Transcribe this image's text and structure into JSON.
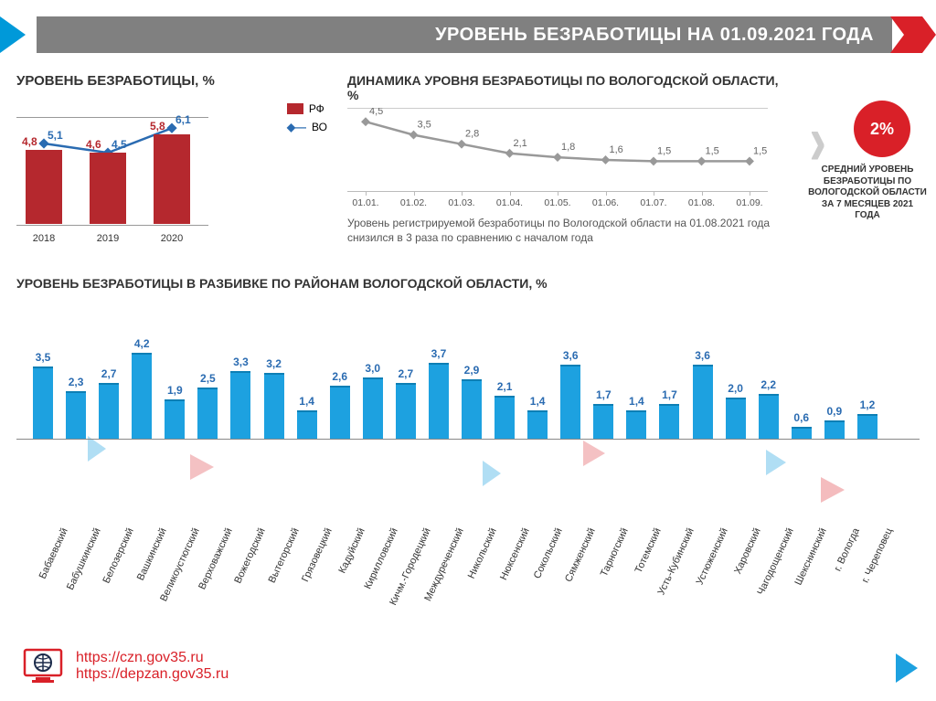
{
  "header": {
    "title": "УРОВЕНЬ БЕЗРАБОТИЦЫ НА 01.09.2021 ГОДА"
  },
  "colors": {
    "rf_bar": "#b5282e",
    "vo_line": "#2a6bb1",
    "district_bar": "#1da1e0",
    "badge": "#d92028",
    "grey_line": "#999999"
  },
  "bl_chart": {
    "title": "УРОВЕНЬ БЕЗРАБОТИЦЫ, %",
    "type": "bar+line",
    "categories": [
      "2018",
      "2019",
      "2020"
    ],
    "rf_values": [
      4.8,
      4.6,
      5.8
    ],
    "vo_values": [
      5.1,
      4.5,
      6.1
    ],
    "rf_labels": [
      "4,8",
      "4,6",
      "5,8"
    ],
    "vo_labels": [
      "5,1",
      "4,5",
      "6,1"
    ],
    "ylim": [
      0,
      7
    ],
    "bar_color": "#b5282e",
    "line_color": "#2a6bb1",
    "marker": "diamond",
    "legend_rf": "РФ",
    "legend_vo": "ВО"
  },
  "dyn_chart": {
    "title": "ДИНАМИКА УРОВНЯ БЕЗРАБОТИЦЫ ПО ВОЛОГОДСКОЙ ОБЛАСТИ, %",
    "type": "line",
    "x": [
      "01.01.",
      "01.02.",
      "01.03.",
      "01.04.",
      "01.05.",
      "01.06.",
      "01.07.",
      "01.08.",
      "01.09."
    ],
    "values": [
      4.5,
      3.5,
      2.8,
      2.1,
      1.8,
      1.6,
      1.5,
      1.5,
      1.5
    ],
    "labels": [
      "4,5",
      "3,5",
      "2,8",
      "2,1",
      "1,8",
      "1,6",
      "1,5",
      "1,5",
      "1,5"
    ],
    "ylim": [
      0,
      5
    ],
    "line_color": "#999999",
    "note": "Уровень регистрируемой безработицы по Вологодской области на 01.08.2021 года снизился в 3 раза по сравнению с началом года"
  },
  "badge": {
    "value": "2%",
    "sub": "СРЕДНИЙ УРОВЕНЬ БЕЗРАБОТИЦЫ ПО ВОЛОГОДСКОЙ ОБЛАСТИ ЗА 7 МЕСЯЦЕВ 2021 ГОДА"
  },
  "districts": {
    "title": "УРОВЕНЬ БЕЗРАБОТИЦЫ В РАЗБИВКЕ ПО РАЙОНАМ ВОЛОГОДСКОЙ ОБЛАСТИ, %",
    "type": "bar",
    "ylim": [
      0,
      5
    ],
    "bar_color": "#1da1e0",
    "items": [
      {
        "name": "Бабаевский",
        "v": 3.5,
        "l": "3,5"
      },
      {
        "name": "Бабушкинский",
        "v": 2.3,
        "l": "2,3"
      },
      {
        "name": "Белозерский",
        "v": 2.7,
        "l": "2,7"
      },
      {
        "name": "Вашкинский",
        "v": 4.2,
        "l": "4,2"
      },
      {
        "name": "Великоустюгский",
        "v": 1.9,
        "l": "1,9"
      },
      {
        "name": "Верховажский",
        "v": 2.5,
        "l": "2,5"
      },
      {
        "name": "Вожегодский",
        "v": 3.3,
        "l": "3,3"
      },
      {
        "name": "Вытегорский",
        "v": 3.2,
        "l": "3,2"
      },
      {
        "name": "Грязовецкий",
        "v": 1.4,
        "l": "1,4"
      },
      {
        "name": "Кадуйский",
        "v": 2.6,
        "l": "2,6"
      },
      {
        "name": "Кирилловский",
        "v": 3.0,
        "l": "3,0"
      },
      {
        "name": "Кичм.-Городецкий",
        "v": 2.7,
        "l": "2,7"
      },
      {
        "name": "Междуреченский",
        "v": 3.7,
        "l": "3,7"
      },
      {
        "name": "Никольский",
        "v": 2.9,
        "l": "2,9"
      },
      {
        "name": "Нюксенский",
        "v": 2.1,
        "l": "2,1"
      },
      {
        "name": "Сокольский",
        "v": 1.4,
        "l": "1,4"
      },
      {
        "name": "Сямженский",
        "v": 3.6,
        "l": "3,6"
      },
      {
        "name": "Тарногский",
        "v": 1.7,
        "l": "1,7"
      },
      {
        "name": "Тотемский",
        "v": 1.4,
        "l": "1,4"
      },
      {
        "name": "Усть-Кубинский",
        "v": 1.7,
        "l": "1,7"
      },
      {
        "name": "Устюженский",
        "v": 3.6,
        "l": "3,6"
      },
      {
        "name": "Харовский",
        "v": 2.0,
        "l": "2,0"
      },
      {
        "name": "Чагодощенский",
        "v": 2.2,
        "l": "2,2"
      },
      {
        "name": "Шекснинский",
        "v": 0.6,
        "l": "0,6"
      },
      {
        "name": "г. Вологда",
        "v": 0.9,
        "l": "0,9"
      },
      {
        "name": "г. Череповец",
        "v": 1.2,
        "l": "1,2"
      }
    ]
  },
  "footer": {
    "link1": "https://czn.gov35.ru",
    "link2": "https://depzan.gov35.ru"
  }
}
